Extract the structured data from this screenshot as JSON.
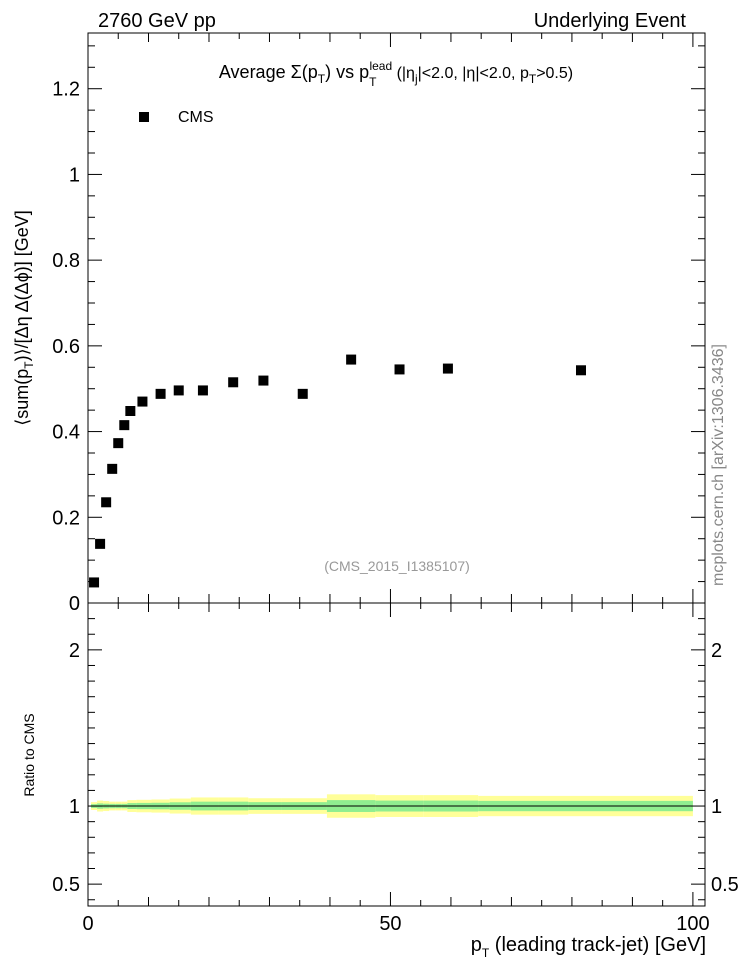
{
  "header": {
    "left_label": "2760 GeV pp",
    "right_label": "Underlying Event"
  },
  "title": {
    "prefix": "Average  ",
    "sigma": "Σ(p",
    "sigma_sub": "T",
    "vs": ") vs p",
    "lead_sup": "lead",
    "lead_sub": "T",
    "cuts_a": " (|η",
    "cuts_a_sub": "j",
    "cuts_b": "|<2.0, |η|<2.0, p",
    "cuts_b_sub": "T",
    "cuts_c": ">0.5)"
  },
  "legend": {
    "label": "CMS",
    "position": "top-left"
  },
  "analysis_label": "(CMS_2015_I1385107)",
  "watermark": "mcplots.cern.ch [arXiv:1306.3436]",
  "main_ylabel": {
    "a": "⟨sum(p",
    "a_sub": "T",
    "b": ")⟩/[Δη Δ(Δϕ)] [GeV]"
  },
  "ratio_ylabel": "Ratio to CMS",
  "xlabel": {
    "a": "p",
    "a_sub": "T",
    "b": " (leading track-jet) [GeV]"
  },
  "colors": {
    "marker": "#000000",
    "band_outer": "#ffff99",
    "band_inner": "#90ee90",
    "frame": "#000000",
    "watermark": "#888888"
  },
  "chart_data": {
    "type": "scatter",
    "xlim": [
      0,
      102
    ],
    "ylim": [
      0,
      1.33
    ],
    "ratio_ylim": [
      0.36,
      2.3
    ],
    "x_ticks": [
      0,
      50,
      100
    ],
    "y_ticks": [
      0,
      0.2,
      0.4,
      0.6,
      0.8,
      1,
      1.2
    ],
    "y_tick_labels": [
      "0",
      "0.2",
      "0.4",
      "0.6",
      "0.8",
      "1",
      "1.2"
    ],
    "ratio_ticks": [
      0.5,
      1,
      2
    ],
    "ratio_tick_labels": [
      "0.5",
      "1",
      "2"
    ],
    "series": [
      {
        "name": "CMS",
        "points": [
          {
            "x": 1.0,
            "y": 0.048
          },
          {
            "x": 2.0,
            "y": 0.138
          },
          {
            "x": 3.0,
            "y": 0.235
          },
          {
            "x": 4.0,
            "y": 0.313
          },
          {
            "x": 5.0,
            "y": 0.373
          },
          {
            "x": 6.0,
            "y": 0.415
          },
          {
            "x": 7.0,
            "y": 0.448
          },
          {
            "x": 9.0,
            "y": 0.47
          },
          {
            "x": 12.0,
            "y": 0.488
          },
          {
            "x": 15.0,
            "y": 0.496
          },
          {
            "x": 19.0,
            "y": 0.496
          },
          {
            "x": 24.0,
            "y": 0.515
          },
          {
            "x": 29.0,
            "y": 0.519
          },
          {
            "x": 35.5,
            "y": 0.488
          },
          {
            "x": 43.5,
            "y": 0.568
          },
          {
            "x": 51.5,
            "y": 0.545
          },
          {
            "x": 59.5,
            "y": 0.547
          },
          {
            "x": 81.5,
            "y": 0.543
          }
        ]
      }
    ],
    "ratio_bands": [
      {
        "x0": 0.5,
        "x1": 1.5,
        "outer": [
          0.975,
          1.025
        ],
        "inner": [
          0.988,
          1.012
        ]
      },
      {
        "x0": 1.5,
        "x1": 2.5,
        "outer": [
          0.965,
          1.035
        ],
        "inner": [
          0.983,
          1.017
        ]
      },
      {
        "x0": 2.5,
        "x1": 3.5,
        "outer": [
          0.968,
          1.032
        ],
        "inner": [
          0.985,
          1.015
        ]
      },
      {
        "x0": 3.5,
        "x1": 4.5,
        "outer": [
          0.972,
          1.028
        ],
        "inner": [
          0.986,
          1.014
        ]
      },
      {
        "x0": 4.5,
        "x1": 5.5,
        "outer": [
          0.972,
          1.028
        ],
        "inner": [
          0.986,
          1.014
        ]
      },
      {
        "x0": 5.5,
        "x1": 6.5,
        "outer": [
          0.972,
          1.028
        ],
        "inner": [
          0.986,
          1.014
        ]
      },
      {
        "x0": 6.5,
        "x1": 8.0,
        "outer": [
          0.962,
          1.038
        ],
        "inner": [
          0.981,
          1.019
        ]
      },
      {
        "x0": 8.0,
        "x1": 10.5,
        "outer": [
          0.96,
          1.04
        ],
        "inner": [
          0.98,
          1.02
        ]
      },
      {
        "x0": 10.5,
        "x1": 13.5,
        "outer": [
          0.958,
          1.042
        ],
        "inner": [
          0.979,
          1.021
        ]
      },
      {
        "x0": 13.5,
        "x1": 17.0,
        "outer": [
          0.952,
          1.048
        ],
        "inner": [
          0.976,
          1.024
        ]
      },
      {
        "x0": 17.0,
        "x1": 21.5,
        "outer": [
          0.945,
          1.055
        ],
        "inner": [
          0.972,
          1.028
        ]
      },
      {
        "x0": 21.5,
        "x1": 26.5,
        "outer": [
          0.945,
          1.055
        ],
        "inner": [
          0.972,
          1.028
        ]
      },
      {
        "x0": 26.5,
        "x1": 32.0,
        "outer": [
          0.95,
          1.05
        ],
        "inner": [
          0.975,
          1.025
        ]
      },
      {
        "x0": 32.0,
        "x1": 39.5,
        "outer": [
          0.95,
          1.05
        ],
        "inner": [
          0.975,
          1.025
        ]
      },
      {
        "x0": 39.5,
        "x1": 47.5,
        "outer": [
          0.925,
          1.075
        ],
        "inner": [
          0.962,
          1.038
        ]
      },
      {
        "x0": 47.5,
        "x1": 55.5,
        "outer": [
          0.93,
          1.07
        ],
        "inner": [
          0.965,
          1.035
        ]
      },
      {
        "x0": 55.5,
        "x1": 64.5,
        "outer": [
          0.93,
          1.07
        ],
        "inner": [
          0.965,
          1.035
        ]
      },
      {
        "x0": 64.5,
        "x1": 100.0,
        "outer": [
          0.935,
          1.065
        ],
        "inner": [
          0.967,
          1.033
        ]
      }
    ]
  }
}
